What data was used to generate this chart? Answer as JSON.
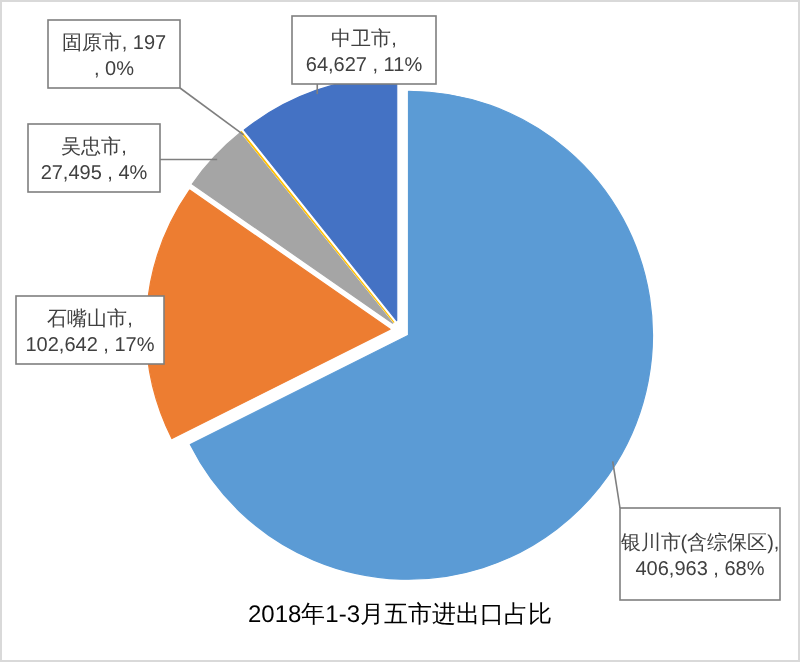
{
  "chart_data": {
    "type": "pie",
    "title": "2018年1-3月五市进出口占比",
    "categories": [
      "银川市(含综保区)",
      "石嘴山市",
      "吴忠市",
      "固原市",
      "中卫市"
    ],
    "values": [
      406963,
      102642,
      27495,
      197,
      64627
    ],
    "colors": [
      "#5b9bd5",
      "#ed7d31",
      "#a5a5a5",
      "#ffc000",
      "#4472c4"
    ],
    "value_labels": [
      ", 406,963 , 68%",
      ", 102,642 , 17%",
      ", 27,495 , 4%",
      ", 197 , 0%",
      ", 64,627 , 11%"
    ],
    "legend": false
  }
}
